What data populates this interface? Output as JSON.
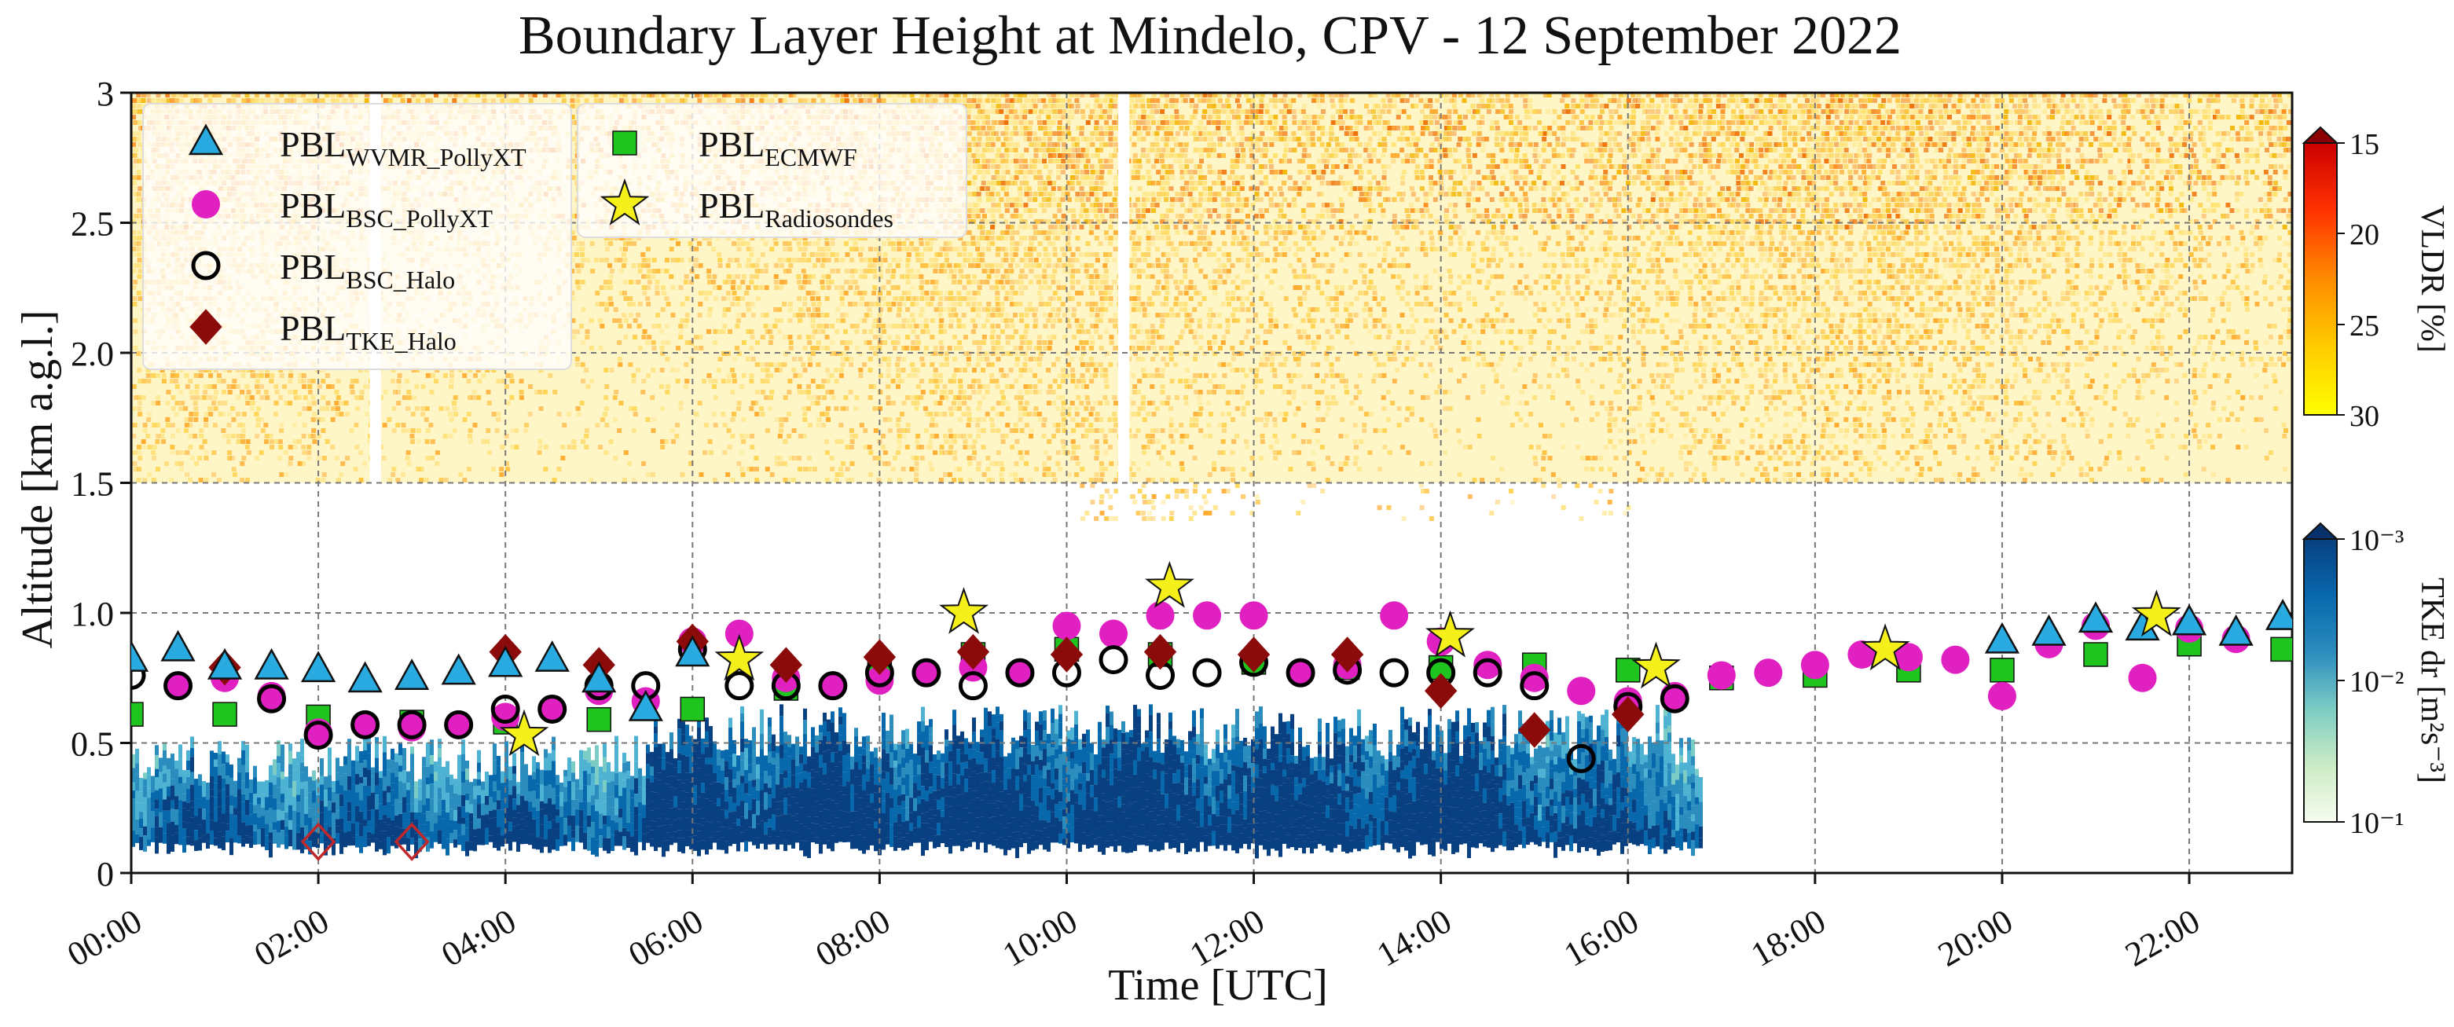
{
  "chart_data": {
    "type": "scatter",
    "title": "Boundary Layer Height at Mindelo, CPV - 12 September 2022",
    "xlabel": "Time [UTC]",
    "ylabel": "Altitude [km a.g.l.]",
    "xlim": [
      0,
      23.1
    ],
    "ylim": [
      0,
      3
    ],
    "x_ticks": [
      0,
      2,
      4,
      6,
      8,
      10,
      12,
      14,
      16,
      18,
      20,
      22
    ],
    "x_tick_labels": [
      "00:00",
      "02:00",
      "04:00",
      "06:00",
      "08:00",
      "10:00",
      "12:00",
      "14:00",
      "16:00",
      "18:00",
      "20:00",
      "22:00"
    ],
    "y_ticks": [
      0,
      0.5,
      1.0,
      1.5,
      2.0,
      2.5,
      3
    ],
    "y_tick_labels": [
      "0",
      "0.5",
      "1.0",
      "1.5",
      "2.0",
      "2.5",
      "3"
    ],
    "grid": true,
    "legend_position": "top-left",
    "background_fields": [
      {
        "name": "VLDR",
        "range_km": [
          1.5,
          3.0
        ],
        "time_range_h": [
          0,
          23.1
        ],
        "colormap": "yellow-orange-red"
      },
      {
        "name": "TKE dr",
        "range_km": [
          0.12,
          0.8
        ],
        "time_range_h": [
          0,
          16.8
        ],
        "colormap": "white-green-blue"
      }
    ],
    "colorbars": [
      {
        "label": "VLDR [%]",
        "ticks": [
          "15",
          "20",
          "25",
          "30"
        ],
        "min": 15,
        "max": 30,
        "colors": [
          "#ffff00",
          "#ffcc00",
          "#ff8c00",
          "#ff3300",
          "#cc0000"
        ],
        "extend_color": "#8b0000"
      },
      {
        "label": "TKE dr [m²s⁻³]",
        "ticks": [
          "10⁻³",
          "10⁻²",
          "10⁻¹"
        ],
        "scale": "log",
        "min": 0.001,
        "max": 0.1,
        "colors": [
          "#f7fcf0",
          "#ccebc5",
          "#7bccc4",
          "#2b8cbe",
          "#0868ac",
          "#084081"
        ],
        "extend_color": "#08306b"
      }
    ],
    "series": [
      {
        "name": "PBL",
        "subscript": "WVMR_PollyXT",
        "marker": "triangle",
        "color": "#29abe2",
        "x": [
          0,
          0.5,
          1,
          1.5,
          2,
          2.5,
          3,
          3.5,
          4,
          4.5,
          5,
          5.5,
          6,
          20,
          20.5,
          21,
          21.5,
          22,
          22.5,
          23
        ],
        "y": [
          0.82,
          0.86,
          0.79,
          0.79,
          0.78,
          0.74,
          0.75,
          0.77,
          0.8,
          0.82,
          0.74,
          0.63,
          0.84,
          0.89,
          0.92,
          0.97,
          0.94,
          0.96,
          0.92,
          0.98
        ]
      },
      {
        "name": "PBL",
        "subscript": "BSC_PollyXT",
        "marker": "circle",
        "color": "#e020c0",
        "x": [
          0.5,
          1,
          1.5,
          2,
          2.5,
          3,
          3.5,
          4,
          4.5,
          5,
          5.5,
          6,
          6.5,
          7,
          7.5,
          8,
          8.5,
          9,
          9.5,
          10,
          10.5,
          11,
          11.5,
          12,
          12.5,
          13,
          13.5,
          14,
          14.5,
          15,
          15.5,
          16,
          16.5,
          17,
          17.5,
          18,
          18.5,
          19,
          19.5,
          20,
          20.5,
          21,
          21.5,
          22,
          22.5
        ],
        "y": [
          0.72,
          0.75,
          0.68,
          0.54,
          0.57,
          0.56,
          0.57,
          0.6,
          0.63,
          0.7,
          0.66,
          0.89,
          0.92,
          0.75,
          0.72,
          0.74,
          0.77,
          0.79,
          0.77,
          0.95,
          0.92,
          0.99,
          0.99,
          0.99,
          0.77,
          0.8,
          0.99,
          0.89,
          0.8,
          0.75,
          0.7,
          0.66,
          0.68,
          0.76,
          0.77,
          0.8,
          0.84,
          0.83,
          0.82,
          0.68,
          0.88,
          0.95,
          0.75,
          0.94,
          0.9
        ]
      },
      {
        "name": "PBL",
        "subscript": "BSC_Halo",
        "marker": "open-circle",
        "color": "#000000",
        "x": [
          0,
          0.5,
          1.5,
          2,
          2.5,
          3,
          3.5,
          4,
          4.5,
          5,
          5.5,
          6,
          6.5,
          7,
          7.5,
          8,
          8.5,
          9,
          9.5,
          10,
          10.5,
          11,
          11.5,
          12,
          12.5,
          13,
          13.5,
          14,
          14.5,
          15,
          15.5,
          16,
          16.5
        ],
        "y": [
          0.76,
          0.72,
          0.67,
          0.53,
          0.57,
          0.57,
          0.57,
          0.63,
          0.63,
          0.72,
          0.72,
          0.86,
          0.72,
          0.72,
          0.72,
          0.77,
          0.77,
          0.72,
          0.77,
          0.77,
          0.82,
          0.76,
          0.77,
          0.81,
          0.77,
          0.78,
          0.77,
          0.77,
          0.77,
          0.72,
          0.44,
          0.64,
          0.67
        ]
      },
      {
        "name": "PBL",
        "subscript": "TKE_Halo",
        "marker": "diamond",
        "color": "#8b0a0a",
        "x": [
          1,
          4,
          5,
          6,
          7,
          8,
          9,
          10,
          11,
          12,
          13,
          14,
          15,
          16,
          2,
          3
        ],
        "y": [
          0.79,
          0.85,
          0.8,
          0.89,
          0.8,
          0.83,
          0.85,
          0.84,
          0.85,
          0.84,
          0.84,
          0.7,
          0.55,
          0.61,
          0.12,
          0.12
        ],
        "open": [
          false,
          false,
          false,
          false,
          false,
          false,
          false,
          false,
          false,
          false,
          false,
          false,
          false,
          false,
          true,
          true
        ]
      },
      {
        "name": "PBL",
        "subscript": "ECMWF",
        "marker": "square",
        "color": "#1fc41f",
        "x": [
          0,
          1,
          2,
          3,
          4,
          5,
          6,
          7,
          8,
          9,
          10,
          11,
          12,
          13,
          14,
          15,
          16,
          17,
          18,
          19,
          20,
          21,
          22,
          23
        ],
        "y": [
          0.61,
          0.61,
          0.6,
          0.58,
          0.58,
          0.59,
          0.63,
          0.71,
          0.78,
          0.84,
          0.86,
          0.84,
          0.81,
          0.79,
          0.79,
          0.8,
          0.78,
          0.75,
          0.76,
          0.78,
          0.78,
          0.84,
          0.88,
          0.86
        ]
      },
      {
        "name": "PBL",
        "subscript": "Radiosondes",
        "marker": "star",
        "color": "#f5ef1a",
        "x": [
          4.2,
          6.5,
          8.9,
          11.1,
          14.1,
          16.3,
          18.75,
          21.65
        ],
        "y": [
          0.53,
          0.82,
          1.0,
          1.1,
          0.91,
          0.79,
          0.86,
          0.99
        ]
      }
    ]
  }
}
